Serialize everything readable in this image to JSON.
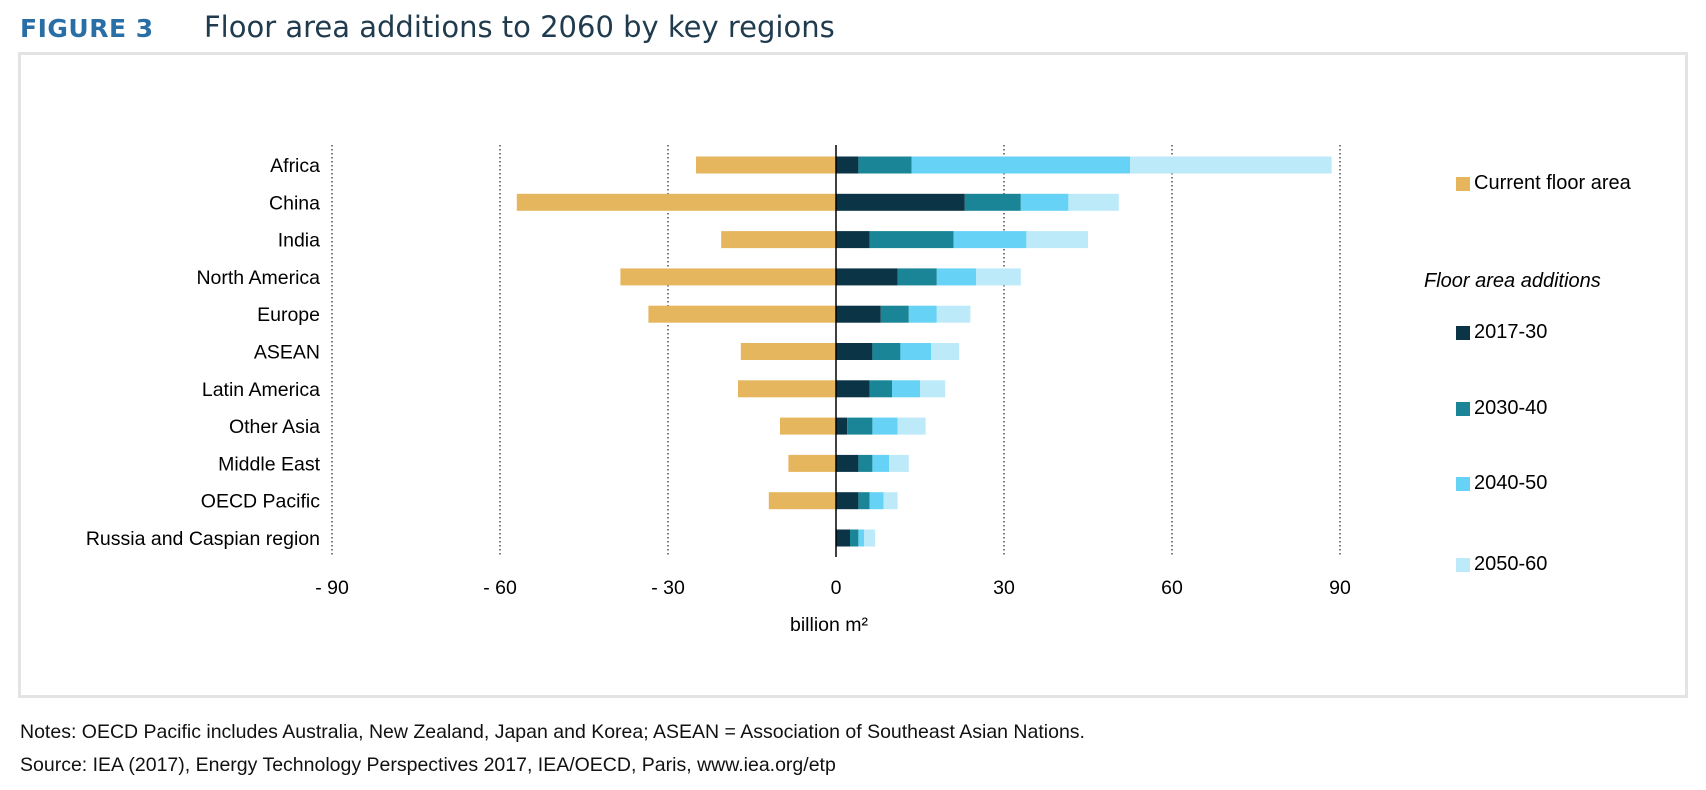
{
  "header": {
    "figure_label": "FIGURE 3",
    "title": "Floor area additions to 2060 by key regions"
  },
  "colors": {
    "current": "#e6b65f",
    "p2017_30": "#0b3446",
    "p2030_40": "#1a8597",
    "p2040_50": "#66d2f5",
    "p2050_60": "#bdeaf8"
  },
  "chart_data": {
    "type": "bar",
    "orientation": "horizontal",
    "stacked": true,
    "categories": [
      "Africa",
      "China",
      "India",
      "North America",
      "Europe",
      "ASEAN",
      "Latin America",
      "Other Asia",
      "Middle East",
      "OECD Pacific",
      "Russia and Caspian region"
    ],
    "series": [
      {
        "name": "Current floor area",
        "values": [
          -25,
          -57,
          -20.5,
          -38.5,
          -33.5,
          -17,
          -17.5,
          -10,
          -8.5,
          -12,
          0
        ]
      },
      {
        "name": "2017-30",
        "values": [
          4,
          23,
          6,
          11,
          8,
          6.5,
          6,
          2,
          4,
          4,
          2.5
        ]
      },
      {
        "name": "2030-40",
        "values": [
          9.5,
          10,
          15,
          7,
          5,
          5,
          4,
          4.5,
          2.5,
          2,
          1.5
        ]
      },
      {
        "name": "2040-50",
        "values": [
          39,
          8.5,
          13,
          7,
          5,
          5.5,
          5,
          4.5,
          3,
          2.5,
          1
        ]
      },
      {
        "name": "2050-60",
        "values": [
          36,
          9,
          11,
          8,
          6,
          5,
          4.5,
          5,
          3.5,
          2.5,
          2
        ]
      }
    ],
    "xlim": [
      -90,
      90
    ],
    "xticks": [
      "- 90",
      "- 60",
      "- 30",
      "0",
      "30",
      "60",
      "90"
    ],
    "xlabel": "billion m²",
    "grid": "vertical dotted",
    "legend_position": "right"
  },
  "legend": {
    "current_label": "Current floor area",
    "additions_heading": "Floor area additions",
    "p1": "2017-30",
    "p2": "2030-40",
    "p3": "2040-50",
    "p4": "2050-60"
  },
  "notes": {
    "line1": "Notes: OECD Pacific includes Australia, New Zealand, Japan and Korea; ASEAN = Association of Southeast Asian Nations.",
    "line2": "Source: IEA (2017), Energy Technology Perspectives 2017, IEA/OECD, Paris, www.iea.org/etp"
  }
}
